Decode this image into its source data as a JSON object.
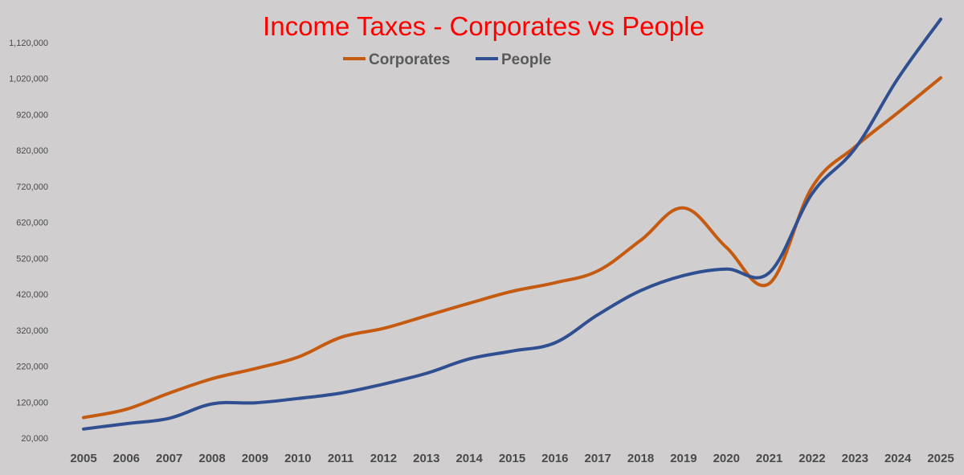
{
  "chart_data": {
    "type": "line",
    "title": "Income Taxes - Corporates vs People",
    "xlabel": "",
    "ylabel": "",
    "categories": [
      "2005",
      "2006",
      "2007",
      "2008",
      "2009",
      "2010",
      "2011",
      "2012",
      "2013",
      "2014",
      "2015",
      "2016",
      "2017",
      "2018",
      "2019",
      "2020",
      "2021",
      "2022",
      "2023",
      "2024",
      "2025"
    ],
    "y_tick_labels": [
      "20,000",
      "120,000",
      "220,000",
      "320,000",
      "420,000",
      "520,000",
      "620,000",
      "720,000",
      "820,000",
      "920,000",
      "1,020,000",
      "1,120,000"
    ],
    "ylim": [
      20000,
      1190000
    ],
    "grid": false,
    "legend_position": "top-center",
    "series": [
      {
        "name": "Corporates",
        "color": "#c55a11",
        "values": [
          77000,
          100000,
          145000,
          185000,
          213000,
          245000,
          300000,
          325000,
          360000,
          395000,
          428000,
          452000,
          485000,
          570000,
          660000,
          550000,
          450000,
          718000,
          830000,
          925000,
          1022000
        ]
      },
      {
        "name": "People",
        "color": "#2f4f91",
        "values": [
          45000,
          60000,
          75000,
          115000,
          118000,
          130000,
          145000,
          170000,
          200000,
          240000,
          262000,
          285000,
          363000,
          430000,
          472000,
          490000,
          480000,
          700000,
          825000,
          1020000,
          1185000
        ]
      }
    ]
  }
}
